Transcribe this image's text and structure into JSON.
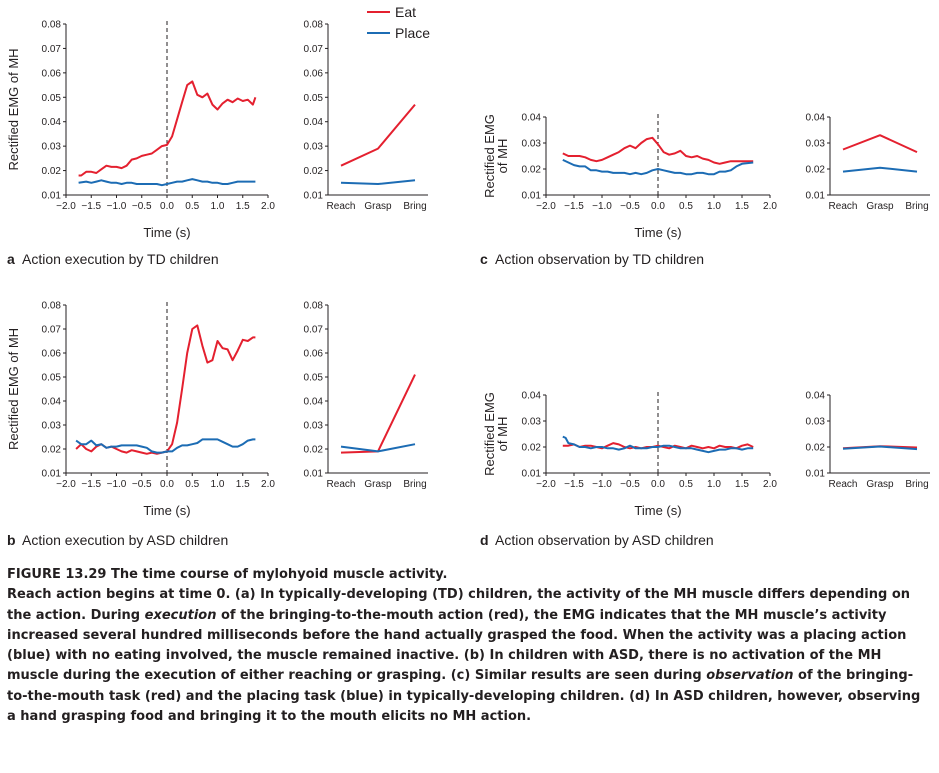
{
  "legend": [
    {
      "name": "Eat",
      "color": "#e4202f"
    },
    {
      "name": "Place",
      "color": "#1c6cb4"
    }
  ],
  "panel_labels": {
    "a": {
      "letter": "a",
      "text": "Action execution by TD children"
    },
    "b": {
      "letter": "b",
      "text": "Action execution by ASD children"
    },
    "c": {
      "letter": "c",
      "text": "Action observation by TD children"
    },
    "d": {
      "letter": "d",
      "text": "Action observation by ASD children"
    }
  },
  "caption": {
    "title": "FIGURE 13.29 The time course of mylohyoid muscle activity.",
    "p1": "Reach action begins at time 0. (a) In typically-developing (TD) children, the activity of the MH muscle differs depending on the action. During ",
    "p1_em": "execution",
    "p2": " of the bringing-to-the-mouth action (red), the EMG indicates that the MH muscle’s activity increased several hundred milliseconds before the hand actually grasped the food. When the activity was a placing action (blue) with no eating involved, the muscle remained inactive. (b) In children with ASD, there is no activation of the MH muscle during the execution of either reaching or grasping. (c) Similar results are seen during ",
    "p2_em": "observation",
    "p3": " of the bringing-to-the-mouth task (red) and the placing task (blue) in typically-developing children. (d) In ASD children, however, observing a hand grasping food and bringing it to the mouth elicits no MH action."
  },
  "chart_data": [
    {
      "id": "a-time",
      "type": "line",
      "ylabel": "Rectified EMG of MH",
      "xlabel": "Time (s)",
      "xlim": [
        -2.0,
        2.0
      ],
      "ylim": [
        0.01,
        0.08
      ],
      "xticks": [
        "−2.0",
        "−1.5",
        "−1.0",
        "−0.5",
        "0.0",
        "0.5",
        "1.0",
        "1.5",
        "2.0"
      ],
      "yticks": [
        "0.01",
        "0.02",
        "0.03",
        "0.04",
        "0.05",
        "0.06",
        "0.07",
        "0.08"
      ],
      "marker_x": 0,
      "series": [
        {
          "name": "Eat",
          "color": "#e4202f",
          "x": [
            -1.75,
            -1.7,
            -1.6,
            -1.5,
            -1.4,
            -1.3,
            -1.2,
            -1.1,
            -1.0,
            -0.9,
            -0.8,
            -0.7,
            -0.6,
            -0.5,
            -0.4,
            -0.3,
            -0.2,
            -0.1,
            0.0,
            0.1,
            0.2,
            0.3,
            0.4,
            0.5,
            0.6,
            0.7,
            0.8,
            0.9,
            1.0,
            1.1,
            1.2,
            1.3,
            1.4,
            1.5,
            1.6,
            1.7,
            1.75
          ],
          "y": [
            0.018,
            0.018,
            0.0195,
            0.0195,
            0.019,
            0.0205,
            0.022,
            0.0215,
            0.0215,
            0.021,
            0.022,
            0.0245,
            0.025,
            0.026,
            0.0265,
            0.027,
            0.0285,
            0.03,
            0.0305,
            0.034,
            0.041,
            0.048,
            0.055,
            0.0565,
            0.051,
            0.05,
            0.0515,
            0.047,
            0.045,
            0.0475,
            0.049,
            0.048,
            0.0495,
            0.0485,
            0.049,
            0.047,
            0.05
          ]
        },
        {
          "name": "Place",
          "color": "#1c6cb4",
          "x": [
            -1.75,
            -1.6,
            -1.5,
            -1.4,
            -1.3,
            -1.2,
            -1.1,
            -1.0,
            -0.9,
            -0.8,
            -0.7,
            -0.6,
            -0.5,
            -0.4,
            -0.3,
            -0.2,
            -0.1,
            0.0,
            0.1,
            0.2,
            0.3,
            0.4,
            0.5,
            0.6,
            0.7,
            0.8,
            0.9,
            1.0,
            1.1,
            1.2,
            1.3,
            1.4,
            1.5,
            1.6,
            1.75
          ],
          "y": [
            0.015,
            0.0155,
            0.015,
            0.0155,
            0.016,
            0.0155,
            0.015,
            0.015,
            0.0145,
            0.015,
            0.015,
            0.0145,
            0.0145,
            0.0145,
            0.0145,
            0.0145,
            0.014,
            0.0145,
            0.015,
            0.0155,
            0.0155,
            0.016,
            0.0165,
            0.016,
            0.0155,
            0.0155,
            0.015,
            0.015,
            0.0145,
            0.0145,
            0.015,
            0.0155,
            0.0155,
            0.0155,
            0.0155
          ]
        }
      ]
    },
    {
      "id": "a-phase",
      "type": "line",
      "ylim": [
        0.01,
        0.08
      ],
      "yticks": [
        "0.01",
        "0.02",
        "0.03",
        "0.04",
        "0.05",
        "0.06",
        "0.07",
        "0.08"
      ],
      "categories": [
        "Reach",
        "Grasp",
        "Bring"
      ],
      "series": [
        {
          "name": "Eat",
          "color": "#e4202f",
          "values": [
            0.022,
            0.029,
            0.047
          ]
        },
        {
          "name": "Place",
          "color": "#1c6cb4",
          "values": [
            0.015,
            0.0145,
            0.016
          ]
        }
      ]
    },
    {
      "id": "b-time",
      "type": "line",
      "ylabel": "Rectified EMG of MH",
      "xlabel": "Time (s)",
      "xlim": [
        -2.0,
        2.0
      ],
      "ylim": [
        0.01,
        0.08
      ],
      "xticks": [
        "−2.0",
        "−1.5",
        "−1.0",
        "−0.5",
        "0.0",
        "0.5",
        "1.0",
        "1.5",
        "2.0"
      ],
      "yticks": [
        "0.01",
        "0.02",
        "0.03",
        "0.04",
        "0.05",
        "0.06",
        "0.07",
        "0.08"
      ],
      "marker_x": 0,
      "series": [
        {
          "name": "Eat",
          "color": "#e4202f",
          "x": [
            -1.8,
            -1.7,
            -1.6,
            -1.5,
            -1.4,
            -1.3,
            -1.2,
            -1.1,
            -1.0,
            -0.9,
            -0.8,
            -0.7,
            -0.6,
            -0.5,
            -0.4,
            -0.3,
            -0.2,
            -0.1,
            0.0,
            0.1,
            0.2,
            0.3,
            0.4,
            0.5,
            0.6,
            0.7,
            0.8,
            0.9,
            1.0,
            1.1,
            1.2,
            1.3,
            1.4,
            1.5,
            1.6,
            1.7,
            1.75
          ],
          "y": [
            0.02,
            0.022,
            0.02,
            0.019,
            0.021,
            0.022,
            0.0205,
            0.021,
            0.02,
            0.019,
            0.0185,
            0.0195,
            0.019,
            0.0185,
            0.018,
            0.0185,
            0.018,
            0.0185,
            0.019,
            0.022,
            0.031,
            0.045,
            0.06,
            0.07,
            0.0715,
            0.063,
            0.056,
            0.057,
            0.065,
            0.062,
            0.0615,
            0.057,
            0.061,
            0.0655,
            0.065,
            0.0665,
            0.0665
          ]
        },
        {
          "name": "Place",
          "color": "#1c6cb4",
          "x": [
            -1.8,
            -1.7,
            -1.6,
            -1.5,
            -1.4,
            -1.3,
            -1.2,
            -1.1,
            -1.0,
            -0.9,
            -0.8,
            -0.7,
            -0.6,
            -0.5,
            -0.4,
            -0.3,
            -0.2,
            -0.1,
            0.0,
            0.1,
            0.2,
            0.3,
            0.4,
            0.5,
            0.6,
            0.7,
            0.8,
            0.9,
            1.0,
            1.1,
            1.2,
            1.3,
            1.4,
            1.5,
            1.6,
            1.7,
            1.75
          ],
          "y": [
            0.0235,
            0.022,
            0.022,
            0.0235,
            0.0215,
            0.022,
            0.0205,
            0.021,
            0.021,
            0.0215,
            0.0215,
            0.0215,
            0.0215,
            0.021,
            0.0205,
            0.019,
            0.0185,
            0.0185,
            0.019,
            0.019,
            0.0205,
            0.0215,
            0.0215,
            0.022,
            0.0225,
            0.024,
            0.024,
            0.024,
            0.024,
            0.023,
            0.022,
            0.021,
            0.021,
            0.022,
            0.0235,
            0.024,
            0.024
          ]
        }
      ]
    },
    {
      "id": "b-phase",
      "type": "line",
      "ylim": [
        0.01,
        0.08
      ],
      "yticks": [
        "0.01",
        "0.02",
        "0.03",
        "0.04",
        "0.05",
        "0.06",
        "0.07",
        "0.08"
      ],
      "categories": [
        "Reach",
        "Grasp",
        "Bring"
      ],
      "series": [
        {
          "name": "Eat",
          "color": "#e4202f",
          "values": [
            0.0185,
            0.019,
            0.051
          ]
        },
        {
          "name": "Place",
          "color": "#1c6cb4",
          "values": [
            0.021,
            0.019,
            0.022
          ]
        }
      ]
    },
    {
      "id": "c-time",
      "type": "line",
      "ylabel": "Rectified EMG of MH",
      "xlabel": "Time (s)",
      "xlim": [
        -2.0,
        2.0
      ],
      "ylim": [
        0.01,
        0.04
      ],
      "xticks": [
        "−2.0",
        "−1.5",
        "−1.0",
        "−0.5",
        "0.0",
        "0.5",
        "1.0",
        "1.5",
        "2.0"
      ],
      "yticks": [
        "0.01",
        "0.02",
        "0.03",
        "0.04"
      ],
      "marker_x": 0,
      "series": [
        {
          "name": "Eat",
          "color": "#e4202f",
          "x": [
            -1.7,
            -1.6,
            -1.5,
            -1.4,
            -1.3,
            -1.2,
            -1.1,
            -1.0,
            -0.9,
            -0.8,
            -0.7,
            -0.6,
            -0.5,
            -0.4,
            -0.3,
            -0.2,
            -0.1,
            0.0,
            0.1,
            0.2,
            0.3,
            0.4,
            0.5,
            0.6,
            0.7,
            0.8,
            0.9,
            1.0,
            1.1,
            1.2,
            1.3,
            1.4,
            1.5,
            1.7
          ],
          "y": [
            0.026,
            0.025,
            0.025,
            0.025,
            0.0245,
            0.0235,
            0.023,
            0.0235,
            0.0245,
            0.0255,
            0.0265,
            0.028,
            0.029,
            0.028,
            0.03,
            0.0315,
            0.032,
            0.0295,
            0.0265,
            0.0255,
            0.026,
            0.027,
            0.025,
            0.0245,
            0.025,
            0.024,
            0.0235,
            0.0225,
            0.022,
            0.0225,
            0.023,
            0.023,
            0.023,
            0.023
          ]
        },
        {
          "name": "Place",
          "color": "#1c6cb4",
          "x": [
            -1.7,
            -1.6,
            -1.5,
            -1.4,
            -1.3,
            -1.2,
            -1.1,
            -1.0,
            -0.9,
            -0.8,
            -0.7,
            -0.6,
            -0.5,
            -0.4,
            -0.3,
            -0.2,
            -0.1,
            0.0,
            0.1,
            0.2,
            0.3,
            0.4,
            0.5,
            0.6,
            0.7,
            0.8,
            0.9,
            1.0,
            1.1,
            1.2,
            1.3,
            1.4,
            1.5,
            1.7
          ],
          "y": [
            0.0235,
            0.0225,
            0.0215,
            0.021,
            0.021,
            0.0195,
            0.0195,
            0.019,
            0.019,
            0.0185,
            0.0185,
            0.0185,
            0.018,
            0.0185,
            0.018,
            0.0185,
            0.0195,
            0.02,
            0.0195,
            0.019,
            0.0185,
            0.0185,
            0.018,
            0.018,
            0.0185,
            0.0185,
            0.018,
            0.018,
            0.019,
            0.019,
            0.0195,
            0.021,
            0.022,
            0.0225
          ]
        }
      ]
    },
    {
      "id": "c-phase",
      "type": "line",
      "ylim": [
        0.01,
        0.04
      ],
      "yticks": [
        "0.01",
        "0.02",
        "0.03",
        "0.04"
      ],
      "categories": [
        "Reach",
        "Grasp",
        "Bring"
      ],
      "series": [
        {
          "name": "Eat",
          "color": "#e4202f",
          "values": [
            0.0275,
            0.033,
            0.0265
          ]
        },
        {
          "name": "Place",
          "color": "#1c6cb4",
          "values": [
            0.019,
            0.0205,
            0.019
          ]
        }
      ]
    },
    {
      "id": "d-time",
      "type": "line",
      "ylabel": "Rectified EMG of MH",
      "xlabel": "Time (s)",
      "xlim": [
        -2.0,
        2.0
      ],
      "ylim": [
        0.01,
        0.04
      ],
      "xticks": [
        "−2.0",
        "−1.5",
        "−1.0",
        "−0.5",
        "0.0",
        "0.5",
        "1.0",
        "1.5",
        "2.0"
      ],
      "yticks": [
        "0.01",
        "0.02",
        "0.03",
        "0.04"
      ],
      "marker_x": 0,
      "series": [
        {
          "name": "Eat",
          "color": "#e4202f",
          "x": [
            -1.7,
            -1.6,
            -1.5,
            -1.4,
            -1.3,
            -1.2,
            -1.1,
            -1.0,
            -0.9,
            -0.8,
            -0.7,
            -0.6,
            -0.5,
            -0.4,
            -0.3,
            -0.2,
            -0.1,
            0.0,
            0.1,
            0.2,
            0.3,
            0.4,
            0.5,
            0.6,
            0.7,
            0.8,
            0.9,
            1.0,
            1.1,
            1.2,
            1.3,
            1.4,
            1.5,
            1.6,
            1.7
          ],
          "y": [
            0.0205,
            0.0205,
            0.021,
            0.02,
            0.0205,
            0.0205,
            0.02,
            0.0195,
            0.0205,
            0.0215,
            0.021,
            0.02,
            0.0195,
            0.02,
            0.0195,
            0.02,
            0.02,
            0.0205,
            0.02,
            0.0195,
            0.0205,
            0.02,
            0.0195,
            0.0205,
            0.02,
            0.0195,
            0.02,
            0.0195,
            0.0205,
            0.02,
            0.02,
            0.0195,
            0.0205,
            0.021,
            0.02
          ]
        },
        {
          "name": "Place",
          "color": "#1c6cb4",
          "x": [
            -1.7,
            -1.65,
            -1.6,
            -1.5,
            -1.4,
            -1.3,
            -1.2,
            -1.1,
            -1.0,
            -0.9,
            -0.8,
            -0.7,
            -0.6,
            -0.5,
            -0.4,
            -0.3,
            -0.2,
            -0.1,
            0.0,
            0.1,
            0.2,
            0.3,
            0.4,
            0.5,
            0.6,
            0.7,
            0.8,
            0.9,
            1.0,
            1.1,
            1.2,
            1.3,
            1.4,
            1.5,
            1.6,
            1.7
          ],
          "y": [
            0.024,
            0.0235,
            0.0215,
            0.021,
            0.02,
            0.02,
            0.0195,
            0.02,
            0.02,
            0.0195,
            0.0195,
            0.019,
            0.0195,
            0.0205,
            0.0195,
            0.0195,
            0.0195,
            0.02,
            0.02,
            0.0205,
            0.0205,
            0.02,
            0.0195,
            0.0195,
            0.0195,
            0.019,
            0.0185,
            0.018,
            0.0185,
            0.019,
            0.019,
            0.0195,
            0.0195,
            0.019,
            0.0195,
            0.0195
          ]
        }
      ]
    },
    {
      "id": "d-phase",
      "type": "line",
      "ylim": [
        0.01,
        0.04
      ],
      "yticks": [
        "0.01",
        "0.02",
        "0.03",
        "0.04"
      ],
      "categories": [
        "Reach",
        "Grasp",
        "Bring"
      ],
      "series": [
        {
          "name": "Eat",
          "color": "#e4202f",
          "values": [
            0.0195,
            0.0203,
            0.0198
          ]
        },
        {
          "name": "Place",
          "color": "#1c6cb4",
          "values": [
            0.0193,
            0.0202,
            0.0192
          ]
        }
      ]
    }
  ]
}
